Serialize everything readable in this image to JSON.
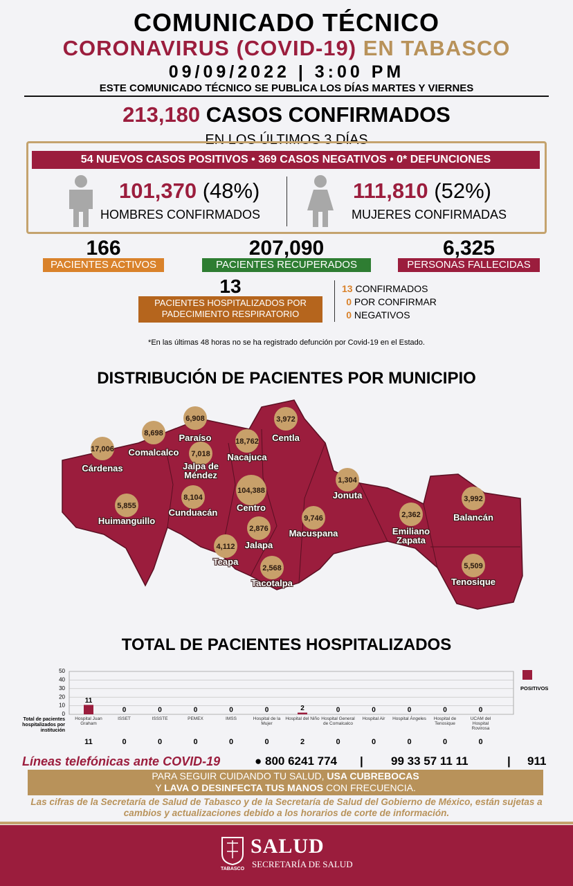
{
  "header": {
    "title": "COMUNICADO TÉCNICO",
    "subtitle": "CORONAVIRUS (COVID-19)",
    "place": "EN TABASCO",
    "date": "09/09/2022 | 3:00 PM",
    "note": "ESTE COMUNICADO TÉCNICO SE PUBLICA LOS DÍAS MARTES Y VIERNES"
  },
  "summary": {
    "total": "213,180",
    "total_label": "CASOS CONFIRMADOS",
    "period": "EN LOS ÚLTIMOS 3 DÍAS",
    "banner": "54 NUEVOS CASOS POSITIVOS • 369 CASOS NEGATIVOS • 0* DEFUNCIONES",
    "men": {
      "count": "101,370",
      "pct": "(48%)",
      "label": "HOMBRES CONFIRMADOS"
    },
    "women": {
      "count": "111,810",
      "pct": "(52%)",
      "label": "MUJERES CONFIRMADAS"
    }
  },
  "stats": {
    "active": {
      "value": "166",
      "label": "PACIENTES ACTIVOS"
    },
    "recovered": {
      "value": "207,090",
      "label": "PACIENTES RECUPERADOS"
    },
    "deaths": {
      "value": "6,325",
      "label": "PERSONAS FALLECIDAS"
    },
    "hospitalized": {
      "value": "13",
      "label": "PACIENTES HOSPITALIZADOS POR PADECIMIENTO RESPIRATORIO"
    },
    "breakdown": [
      {
        "value": "13",
        "label": "CONFIRMADOS"
      },
      {
        "value": "0",
        "label": "POR CONFIRMAR"
      },
      {
        "value": "0",
        "label": "NEGATIVOS"
      }
    ],
    "footnote": "*En las últimas 48 horas no se ha registrado defunción por Covid-19 en el Estado."
  },
  "map": {
    "title": "DISTRIBUCIÓN DE PACIENTES POR MUNICIPIO",
    "municipalities": [
      {
        "name": "Cárdenas",
        "value": "17,006"
      },
      {
        "name": "Comalcalco",
        "value": "8,698"
      },
      {
        "name": "Paraíso",
        "value": "6,908"
      },
      {
        "name": "Jalpa de Méndez",
        "value": "7,018"
      },
      {
        "name": "Centla",
        "value": "3,972"
      },
      {
        "name": "Nacajuca",
        "value": "18,762"
      },
      {
        "name": "Centro",
        "value": "104,388"
      },
      {
        "name": "Cunduacán",
        "value": "8,104"
      },
      {
        "name": "Huimanguillo",
        "value": "5,855"
      },
      {
        "name": "Jonuta",
        "value": "1,304"
      },
      {
        "name": "Jalapa",
        "value": "2,876"
      },
      {
        "name": "Macuspana",
        "value": "9,746"
      },
      {
        "name": "Teapa",
        "value": "4,112"
      },
      {
        "name": "Tacotalpa",
        "value": "2,568"
      },
      {
        "name": "Emiliano Zapata",
        "value": "2,362"
      },
      {
        "name": "Balancán",
        "value": "3,992"
      },
      {
        "name": "Tenosique",
        "value": "5,509"
      }
    ]
  },
  "hospital_chart": {
    "type": "bar",
    "title": "TOTAL DE PACIENTES HOSPITALIZADOS",
    "categories": [
      "Hospital Juan Graham",
      "ISSET",
      "ISSSTE",
      "PEMEX",
      "IMSS",
      "Hospital de la Mujer",
      "Hospital del Niño",
      "Hospital General de Comalcalco",
      "Hospital Air",
      "Hospital Ángeles",
      "Hospital de Tenosique",
      "UCAM del Hospital Rovirosa"
    ],
    "series": [
      {
        "name": "POSITIVOS",
        "color": "#9b1d3d",
        "values": [
          11,
          0,
          0,
          0,
          0,
          0,
          2,
          0,
          0,
          0,
          0,
          0
        ]
      }
    ],
    "ylim": [
      0,
      50
    ],
    "yticks": [
      0,
      10,
      20,
      30,
      40,
      50
    ],
    "grid": true,
    "legend": "right",
    "totals_label": "Total de pacientes hospitalizados por institución",
    "totals": [
      11,
      0,
      0,
      0,
      0,
      0,
      2,
      0,
      0,
      0,
      0,
      0
    ]
  },
  "phones": {
    "label": "Líneas telefónicas ante COVID-19",
    "numbers": [
      "800 6241 774",
      "99 33 57 11 11",
      "911"
    ]
  },
  "advice": [
    "PARA SEGUIR CUIDANDO TU SALUD,",
    "USA CUBREBOCAS",
    "Y",
    "LAVA O DESINFECTA TUS MANOS",
    "CON FRECUENCIA."
  ],
  "disclaimer": "Las cifras de la Secretaría de Salud de Tabasco y de la Secretaría de Salud del Gobierno de México, están sujetas a cambios y actualizaciones debido a los horarios de corte de información.",
  "footer": {
    "brand": "SALUD",
    "ministry": "SECRETARÍA DE SALUD",
    "state": "TABASCO"
  }
}
